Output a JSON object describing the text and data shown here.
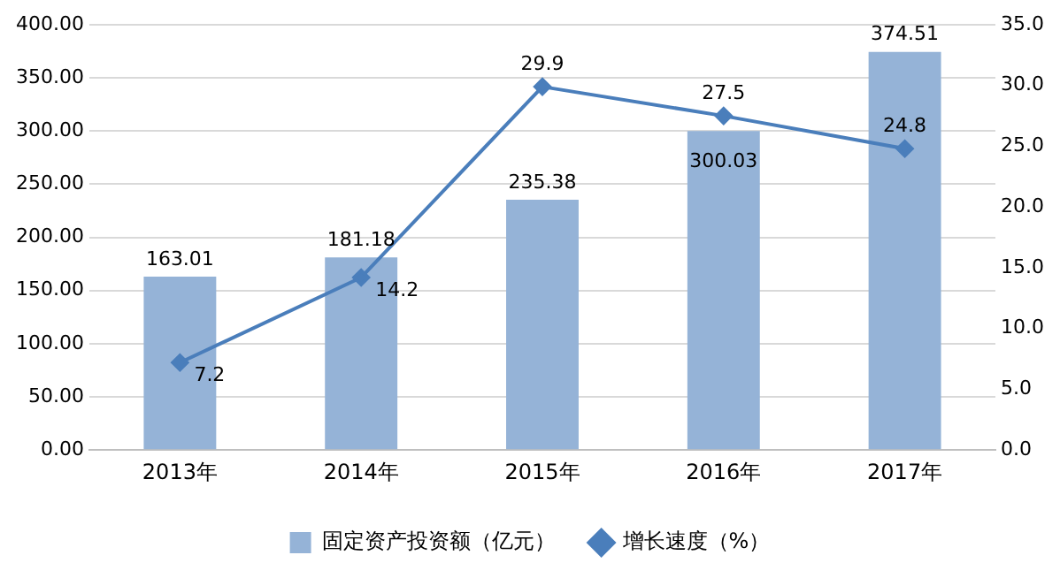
{
  "chart_data": {
    "type": "bar",
    "categories": [
      "2013年",
      "2014年",
      "2015年",
      "2016年",
      "2017年"
    ],
    "series": [
      {
        "name": "固定资产投资额（亿元）",
        "color": "#95b3d7",
        "values": [
          163.01,
          181.18,
          235.38,
          300.03,
          374.51
        ]
      },
      {
        "name": "增长速度（%）",
        "type": "line",
        "axis": "y2",
        "color": "#4a7ebb",
        "values": [
          7.2,
          14.2,
          29.9,
          27.5,
          24.8
        ]
      }
    ],
    "ylim": [
      0,
      400
    ],
    "yticks": [
      {
        "value": 0,
        "label": "0.00"
      },
      {
        "value": 50,
        "label": "50.00"
      },
      {
        "value": 100,
        "label": "100.00"
      },
      {
        "value": 150,
        "label": "150.00"
      },
      {
        "value": 200,
        "label": "200.00"
      },
      {
        "value": 250,
        "label": "250.00"
      },
      {
        "value": 300,
        "label": "300.00"
      },
      {
        "value": 350,
        "label": "350.00"
      },
      {
        "value": 400,
        "label": "400.00"
      }
    ],
    "y2lim": [
      0,
      35
    ],
    "y2ticks": [
      {
        "value": 0,
        "label": "0.0"
      },
      {
        "value": 5,
        "label": "5.0"
      },
      {
        "value": 10,
        "label": "10.0"
      },
      {
        "value": 15,
        "label": "15.0"
      },
      {
        "value": 20,
        "label": "20.0"
      },
      {
        "value": 25,
        "label": "25.0"
      },
      {
        "value": 30,
        "label": "30.0"
      },
      {
        "value": 35,
        "label": "35.0"
      }
    ],
    "grid": "y",
    "legend": "bottom",
    "marker": "diamond",
    "line_style": "solid",
    "data_labels": true
  }
}
